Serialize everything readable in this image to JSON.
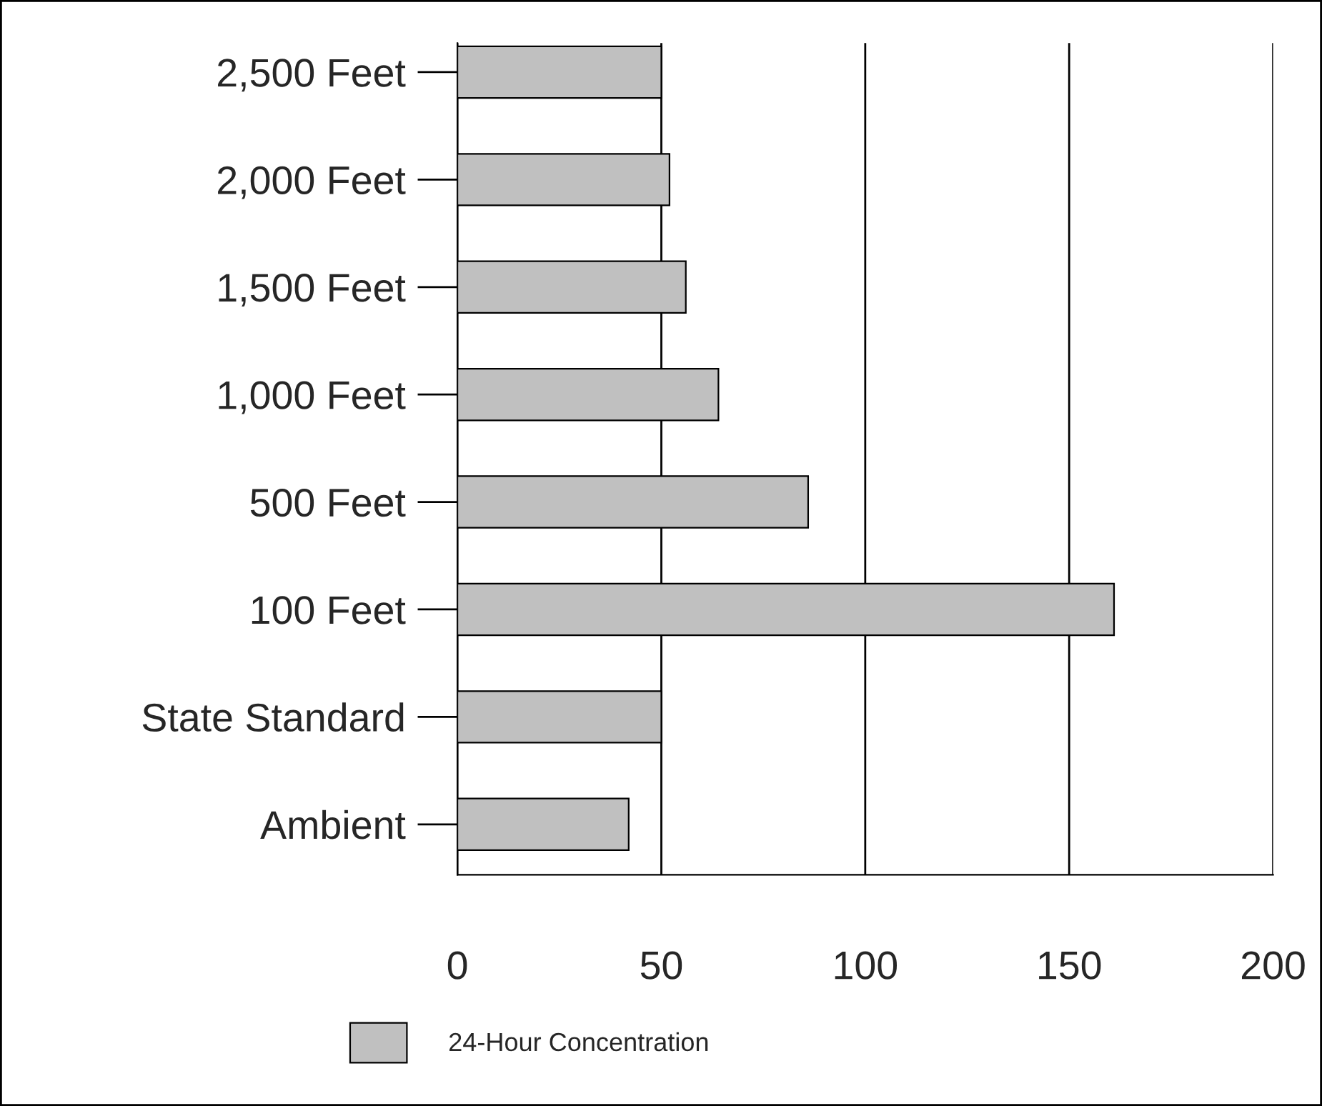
{
  "chart_data": {
    "type": "bar",
    "orientation": "horizontal",
    "categories": [
      "2,500 Feet",
      "2,000 Feet",
      "1,500 Feet",
      "1,000 Feet",
      "500 Feet",
      "100 Feet",
      "State Standard",
      "Ambient"
    ],
    "series": [
      {
        "name": "24-Hour Concentration",
        "color": "#c0c0c0",
        "values": [
          50,
          52,
          56,
          64,
          86,
          161,
          50,
          42
        ]
      }
    ],
    "xlim": [
      0,
      200
    ],
    "xticks": [
      0,
      50,
      100,
      150,
      200
    ],
    "grid": "x",
    "legend": "bottom"
  }
}
